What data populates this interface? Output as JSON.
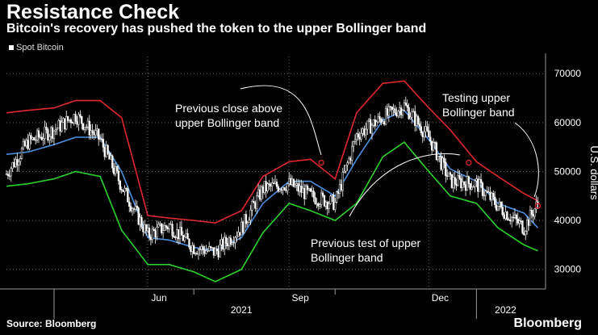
{
  "header": {
    "title": "Resistance Check",
    "subtitle": "Bitcoin's recovery has pushed the token to the upper Bollinger band"
  },
  "legend": {
    "label": "Spot Bitcoin"
  },
  "footer": {
    "source": "Source: Bloomberg",
    "brand": "Bloomberg"
  },
  "colors": {
    "background": "#000000",
    "price": "#ffffff",
    "upper_band": "#e0282e",
    "middle_band": "#4a90e2",
    "lower_band": "#2bd42b",
    "grid": "#6b6b6b"
  },
  "chart_data": {
    "type": "line",
    "title": "Resistance Check",
    "subtitle": "Bitcoin's recovery has pushed the token to the upper Bollinger band",
    "xlabel": "",
    "ylabel": "U.S. dollars",
    "x_axis_scale": "daily dates",
    "x_tick_labels": [
      "Jun",
      "Sep",
      "Dec"
    ],
    "year_labels": [
      "2021",
      "2022"
    ],
    "y_ticks": [
      30000,
      40000,
      50000,
      60000,
      70000
    ],
    "y_tick_labels": [
      "30000",
      "40000",
      "50000",
      "60000",
      "70000"
    ],
    "ylim": [
      26000,
      73500
    ],
    "grid": "dotted vertical and horizontal",
    "legend_position": "top-left",
    "x": [
      "2021-03-01",
      "2021-03-15",
      "2021-04-01",
      "2021-04-15",
      "2021-05-01",
      "2021-05-15",
      "2021-06-01",
      "2021-06-15",
      "2021-07-01",
      "2021-07-15",
      "2021-08-01",
      "2021-08-15",
      "2021-09-01",
      "2021-09-15",
      "2021-10-01",
      "2021-10-15",
      "2021-11-01",
      "2021-11-15",
      "2021-12-01",
      "2021-12-15",
      "2022-01-01",
      "2022-01-15",
      "2022-02-01",
      "2022-02-10"
    ],
    "series": [
      {
        "name": "Spot Bitcoin",
        "style": "daily candlesticks",
        "values": [
          49500,
          56000,
          58500,
          61500,
          56500,
          47000,
          37000,
          39000,
          34500,
          33500,
          38500,
          46500,
          47500,
          45000,
          43500,
          57500,
          61000,
          63500,
          57000,
          48000,
          47500,
          43000,
          38500,
          43500
        ]
      },
      {
        "name": "",
        "role": "upper Bollinger band",
        "values": [
          62000,
          62500,
          63000,
          64500,
          64500,
          61000,
          41000,
          40500,
          40000,
          39500,
          42000,
          49000,
          52000,
          52500,
          48500,
          62000,
          68000,
          68500,
          63000,
          58500,
          52000,
          49000,
          45500,
          44000
        ]
      },
      {
        "name": "",
        "role": "middle band",
        "values": [
          53500,
          54000,
          55500,
          57000,
          57000,
          50000,
          36500,
          36000,
          34500,
          33800,
          36500,
          43500,
          48000,
          48000,
          45000,
          52500,
          60500,
          62500,
          56500,
          50500,
          48000,
          43500,
          41500,
          38500
        ]
      },
      {
        "name": "",
        "role": "lower Bollinger band",
        "values": [
          47000,
          47500,
          48500,
          50000,
          49000,
          38000,
          31000,
          31000,
          29500,
          27500,
          30000,
          37500,
          43500,
          42000,
          40000,
          43500,
          53000,
          56000,
          50000,
          45000,
          43500,
          38500,
          35000,
          33800
        ]
      }
    ],
    "annotations": [
      {
        "text": [
          "Previous close above",
          "upper Bollinger band"
        ],
        "points_to": {
          "x": "2021-09-22",
          "y": 51800
        }
      },
      {
        "text": [
          "Previous test of upper",
          "Bollinger band"
        ],
        "points_to": {
          "x": "2021-12-27",
          "y": 51800
        }
      },
      {
        "text": [
          "Testing upper",
          "Bollinger band"
        ],
        "points_to": {
          "x": "2022-02-10",
          "y": 43000
        }
      }
    ]
  }
}
